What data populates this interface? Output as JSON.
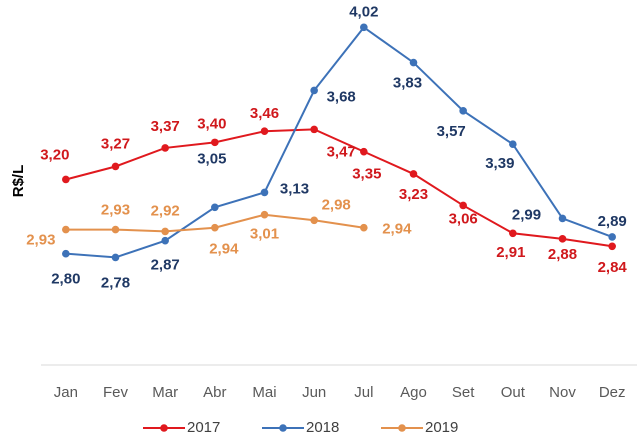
{
  "chart_data": {
    "type": "line",
    "y_label": "R$/L",
    "categories": [
      "Jan",
      "Fev",
      "Mar",
      "Abr",
      "Mai",
      "Jun",
      "Jul",
      "Ago",
      "Set",
      "Out",
      "Nov",
      "Dez"
    ],
    "ylim": [
      2.2,
      4.1
    ],
    "legend": "bottom",
    "series": [
      {
        "name": "2017",
        "color": "#e0191e",
        "values": [
          3.2,
          3.27,
          3.37,
          3.4,
          3.46,
          3.47,
          3.35,
          3.23,
          3.06,
          2.91,
          2.88,
          2.84
        ],
        "value_labels": [
          "3,20",
          "3,27",
          "3,37",
          "3,40",
          "3,46",
          "3,47",
          "3,35",
          "3,23",
          "3,06",
          "2,91",
          "2,88",
          "2,84"
        ]
      },
      {
        "name": "2018",
        "color": "#3d72b8",
        "values": [
          2.8,
          2.78,
          2.87,
          3.05,
          3.13,
          3.68,
          4.02,
          3.83,
          3.57,
          3.39,
          2.99,
          2.89
        ],
        "value_labels": [
          "2,80",
          "2,78",
          "2,87",
          "3,05",
          "3,13",
          "3,68",
          "4,02",
          "3,83",
          "3,57",
          "3,39",
          "2,99",
          "2,89"
        ]
      },
      {
        "name": "2019",
        "color": "#e3914d",
        "values": [
          2.93,
          2.93,
          2.92,
          2.94,
          3.01,
          2.98,
          2.94,
          null,
          null,
          null,
          null,
          null
        ],
        "value_labels": [
          "2,93",
          "2,93",
          "2,92",
          "2,94",
          "3,01",
          "2,98",
          "2,94",
          null,
          null,
          null,
          null,
          null
        ]
      }
    ]
  }
}
